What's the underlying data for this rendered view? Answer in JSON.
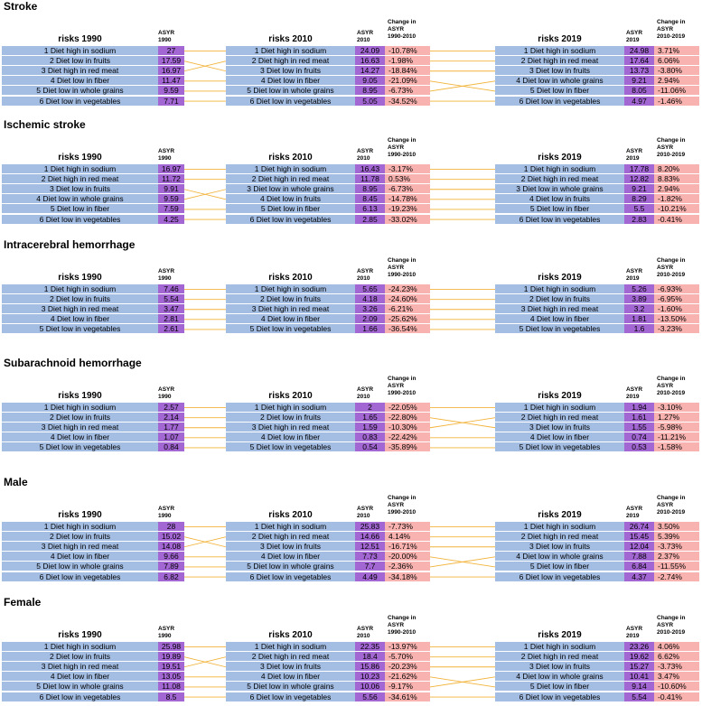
{
  "chart_data": {
    "type": "table",
    "colors": {
      "risk": "#a3bde3",
      "asyr": "#a367d3",
      "change": "#f8b3b0",
      "connector": "#f2b33a"
    },
    "headers": {
      "risks_1990": "risks 1990",
      "risks_2010": "risks 2010",
      "risks_2019": "risks 2019",
      "asyr_1990": [
        "ASYR",
        "1990"
      ],
      "asyr_2010": [
        "ASYR",
        "2010"
      ],
      "asyr_2019": [
        "ASYR",
        "2019"
      ],
      "chg_2010": [
        "Change in",
        "ASYR",
        "1990-2010"
      ],
      "chg_2019": [
        "Change in",
        "ASYR",
        "2010-2019"
      ]
    },
    "sections": [
      {
        "title": "Stroke",
        "risks_1990": [
          "1 Diet high in sodium",
          "2 Diet low in fruits",
          "3 Diet high in red meat",
          "4 Diet low in fiber",
          "5 Diet low in whole grains",
          "6 Diet low in vegetables"
        ],
        "asyr_1990": [
          "27",
          "17.59",
          "16.97",
          "11.47",
          "9.59",
          "7.71"
        ],
        "risks_2010": [
          "1 Diet high in sodium",
          "2 Diet high in red meat",
          "3 Diet low in fruits",
          "4 Diet low in fiber",
          "5 Diet low in whole grains",
          "6 Diet low in vegetables"
        ],
        "asyr_2010": [
          "24.09",
          "16.63",
          "14.27",
          "9.05",
          "8.95",
          "5.05"
        ],
        "chg_2010": [
          "-10.78%",
          "-1.98%",
          "-18.84%",
          "-21.09%",
          "-6.73%",
          "-34.52%"
        ],
        "risks_2019": [
          "1 Diet high in sodium",
          "2 Diet high in red meat",
          "3 Diet low in fruits",
          "4 Diet low in whole grains",
          "5 Diet low in fiber",
          "6 Diet low in vegetables"
        ],
        "asyr_2019": [
          "24.98",
          "17.64",
          "13.73",
          "9.21",
          "8.05",
          "4.97"
        ],
        "chg_2019": [
          "3.71%",
          "6.06%",
          "-3.80%",
          "2.94%",
          "-11.06%",
          "-1.46%"
        ]
      },
      {
        "title": "Ischemic stroke",
        "risks_1990": [
          "1 Diet high in sodium",
          "2 Diet high in red meat",
          "3 Diet low in fruits",
          "4 Diet low in whole grains",
          "5 Diet low in fiber",
          "6 Diet low in vegetables"
        ],
        "asyr_1990": [
          "16.97",
          "11.72",
          "9.91",
          "9.59",
          "7.59",
          "4.25"
        ],
        "risks_2010": [
          "1 Diet high in sodium",
          "2 Diet high in red meat",
          "3 Diet low in whole grains",
          "4 Diet low in fruits",
          "5 Diet low in fiber",
          "6 Diet low in vegetables"
        ],
        "asyr_2010": [
          "16.43",
          "11.78",
          "8.95",
          "8.45",
          "6.13",
          "2.85"
        ],
        "chg_2010": [
          "-3.17%",
          "0.53%",
          "-6.73%",
          "-14.78%",
          "-19.23%",
          "-33.02%"
        ],
        "risks_2019": [
          "1 Diet high in sodium",
          "2 Diet high in red meat",
          "3 Diet low in whole grains",
          "4 Diet low in fruits",
          "5 Diet low in fiber",
          "6 Diet low in vegetables"
        ],
        "asyr_2019": [
          "17.78",
          "12.82",
          "9.21",
          "8.29",
          "5.5",
          "2.83"
        ],
        "chg_2019": [
          "8.20%",
          "8.83%",
          "2.94%",
          "-1.82%",
          "-10.21%",
          "-0.41%"
        ]
      },
      {
        "title": "Intracerebral hemorrhage",
        "risks_1990": [
          "1 Diet high in sodium",
          "2 Diet low in fruits",
          "3 Diet high in red meat",
          "4 Diet low in fiber",
          "5 Diet low in vegetables"
        ],
        "asyr_1990": [
          "7.46",
          "5.54",
          "3.47",
          "2.81",
          "2.61"
        ],
        "risks_2010": [
          "1 Diet high in sodium",
          "2 Diet low in fruits",
          "3 Diet high in red meat",
          "4 Diet low in fiber",
          "5 Diet low in vegetables"
        ],
        "asyr_2010": [
          "5.65",
          "4.18",
          "3.26",
          "2.09",
          "1.66"
        ],
        "chg_2010": [
          "-24.23%",
          "-24.60%",
          "-6.21%",
          "-25.62%",
          "-36.54%"
        ],
        "risks_2019": [
          "1 Diet high in sodium",
          "2 Diet low in fruits",
          "3 Diet high in red meat",
          "4 Diet low in fiber",
          "5 Diet low in vegetables"
        ],
        "asyr_2019": [
          "5.26",
          "3.89",
          "3.2",
          "1.81",
          "1.6"
        ],
        "chg_2019": [
          "-6.93%",
          "-6.95%",
          "-1.60%",
          "-13.50%",
          "-3.23%"
        ]
      },
      {
        "title": "Subarachnoid hemorrhage",
        "risks_1990": [
          "1 Diet high in sodium",
          "2 Diet low in fruits",
          "3 Diet high in red meat",
          "4 Diet low in fiber",
          "5 Diet low in vegetables"
        ],
        "asyr_1990": [
          "2.57",
          "2.14",
          "1.77",
          "1.07",
          "0.84"
        ],
        "risks_2010": [
          "1 Diet high in sodium",
          "2 Diet low in fruits",
          "3 Diet high in red meat",
          "4 Diet low in fiber",
          "5 Diet low in vegetables"
        ],
        "asyr_2010": [
          "2",
          "1.65",
          "1.59",
          "0.83",
          "0.54"
        ],
        "chg_2010": [
          "-22.05%",
          "-22.80%",
          "-10.30%",
          "-22.42%",
          "-35.89%"
        ],
        "risks_2019": [
          "1 Diet high in sodium",
          "2 Diet high in red meat",
          "3 Diet low in fruits",
          "4 Diet low in fiber",
          "5 Diet low in vegetables"
        ],
        "asyr_2019": [
          "1.94",
          "1.61",
          "1.55",
          "0.74",
          "0.53"
        ],
        "chg_2019": [
          "-3.10%",
          "1.27%",
          "-5.98%",
          "-11.21%",
          "-1.58%"
        ]
      },
      {
        "title": "Male",
        "risks_1990": [
          "1 Diet high in sodium",
          "2 Diet low in fruits",
          "3 Diet high in red meat",
          "4 Diet low in fiber",
          "5 Diet low in whole grains",
          "6 Diet low in vegetables"
        ],
        "asyr_1990": [
          "28",
          "15.02",
          "14.08",
          "9.66",
          "7.89",
          "6.82"
        ],
        "risks_2010": [
          "1 Diet high in sodium",
          "2 Diet high in red meat",
          "3 Diet low in fruits",
          "4 Diet low in fiber",
          "5 Diet low in whole grains",
          "6 Diet low in vegetables"
        ],
        "asyr_2010": [
          "25.83",
          "14.66",
          "12.51",
          "7.73",
          "7.7",
          "4.49"
        ],
        "chg_2010": [
          "-7.73%",
          "4.14%",
          "-16.71%",
          "-20.00%",
          "-2.36%",
          "-34.18%"
        ],
        "risks_2019": [
          "1 Diet high in sodium",
          "2 Diet high in red meat",
          "3 Diet low in fruits",
          "4 Diet low in whole grains",
          "5 Diet low in fiber",
          "6 Diet low in vegetables"
        ],
        "asyr_2019": [
          "26.74",
          "15.45",
          "12.04",
          "7.88",
          "6.84",
          "4.37"
        ],
        "chg_2019": [
          "3.50%",
          "5.39%",
          "-3.73%",
          "2.37%",
          "-11.55%",
          "-2.74%"
        ]
      },
      {
        "title": "Female",
        "risks_1990": [
          "1 Diet high in sodium",
          "2 Diet low in fruits",
          "3 Diet high in red meat",
          "4 Diet low in fiber",
          "5 Diet low in whole grains",
          "6 Diet low in vegetables"
        ],
        "asyr_1990": [
          "25.98",
          "19.89",
          "19.51",
          "13.05",
          "11.08",
          "8.5"
        ],
        "risks_2010": [
          "1 Diet high in sodium",
          "2 Diet high in red meat",
          "3 Diet low in fruits",
          "4 Diet low in fiber",
          "5 Diet low in whole grains",
          "6 Diet low in vegetables"
        ],
        "asyr_2010": [
          "22.35",
          "18.4",
          "15.86",
          "10.23",
          "10.06",
          "5.56"
        ],
        "chg_2010": [
          "-13.97%",
          "-5.70%",
          "-20.23%",
          "-21.62%",
          "-9.17%",
          "-34.61%"
        ],
        "risks_2019": [
          "1 Diet high in sodium",
          "2 Diet high in red meat",
          "3 Diet low in fruits",
          "4 Diet low in whole grains",
          "5 Diet low in fiber",
          "6 Diet low in vegetables"
        ],
        "asyr_2019": [
          "23.26",
          "19.62",
          "15.27",
          "10.41",
          "9.14",
          "5.54"
        ],
        "chg_2019": [
          "4.06%",
          "6.62%",
          "-3.73%",
          "3.47%",
          "-10.60%",
          "-0.41%"
        ]
      }
    ]
  }
}
